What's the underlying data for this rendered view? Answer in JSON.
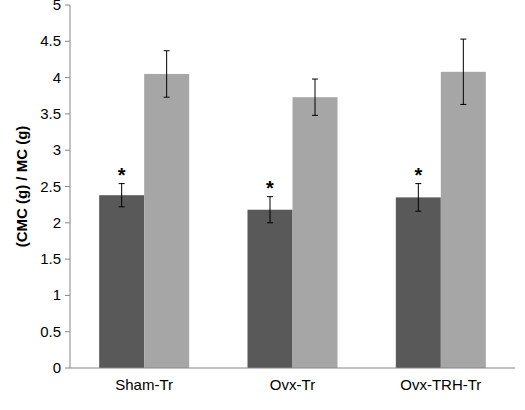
{
  "chart_data": {
    "type": "bar",
    "y_label": "(CMC (g) / MC (g)",
    "categories": [
      "Sham-Tr",
      "Ovx-Tr",
      "Ovx-TRH-Tr"
    ],
    "series": [
      {
        "color": "#595959",
        "values": [
          2.38,
          2.18,
          2.35
        ],
        "errors": [
          0.16,
          0.18,
          0.19
        ],
        "annotations": [
          "*",
          "*",
          "*"
        ]
      },
      {
        "color": "#a6a6a6",
        "values": [
          4.05,
          3.73,
          4.08
        ],
        "errors": [
          0.32,
          0.25,
          0.45
        ]
      }
    ],
    "ylim": [
      0,
      5
    ],
    "yticks": [
      0,
      0.5,
      1,
      1.5,
      2,
      2.5,
      3,
      3.5,
      4,
      4.5,
      5
    ],
    "grid": false
  }
}
